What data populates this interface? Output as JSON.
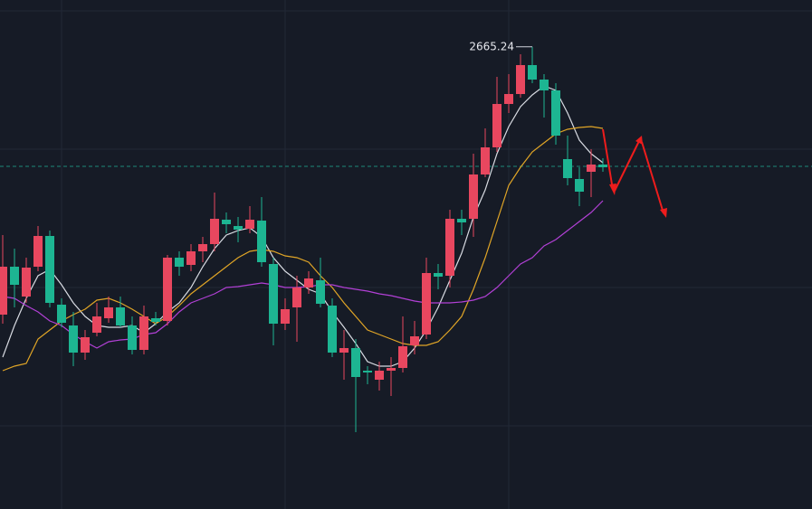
{
  "chart_data": {
    "type": "candlestick",
    "high_label": "2665.24",
    "up_color": "#e8475f",
    "down_color": "#1db592",
    "ylim": [
      2154,
      2717
    ],
    "open": [
      2369,
      2422,
      2389,
      2422,
      2456,
      2380,
      2357,
      2327,
      2349,
      2365,
      2377,
      2357,
      2330,
      2365,
      2362,
      2432,
      2424,
      2439,
      2447,
      2474,
      2467,
      2464,
      2473,
      2425,
      2359,
      2377,
      2399,
      2407,
      2379,
      2327,
      2332,
      2307,
      2297,
      2307,
      2310,
      2335,
      2347,
      2415,
      2412,
      2475,
      2475,
      2524,
      2554,
      2602,
      2613,
      2645,
      2629,
      2617,
      2541,
      2519,
      2527,
      2535
    ],
    "high": [
      2457,
      2442,
      2432,
      2467,
      2462,
      2387,
      2372,
      2352,
      2382,
      2389,
      2389,
      2367,
      2379,
      2372,
      2435,
      2439,
      2447,
      2455,
      2504,
      2482,
      2477,
      2489,
      2499,
      2432,
      2387,
      2412,
      2417,
      2432,
      2387,
      2352,
      2342,
      2312,
      2317,
      2322,
      2367,
      2362,
      2432,
      2425,
      2485,
      2485,
      2547,
      2575,
      2632,
      2635,
      2657,
      2665.24,
      2635,
      2625,
      2567,
      2532,
      2552,
      2542
    ],
    "low": [
      2359,
      2377,
      2382,
      2417,
      2377,
      2355,
      2312,
      2319,
      2345,
      2360,
      2355,
      2325,
      2325,
      2357,
      2357,
      2412,
      2417,
      2427,
      2439,
      2459,
      2449,
      2459,
      2422,
      2335,
      2352,
      2339,
      2392,
      2377,
      2322,
      2297,
      2239,
      2292,
      2285,
      2279,
      2305,
      2325,
      2342,
      2397,
      2399,
      2457,
      2455,
      2521,
      2549,
      2592,
      2609,
      2625,
      2587,
      2557,
      2512,
      2489,
      2499,
      2527
    ],
    "close": [
      2422,
      2402,
      2421,
      2456,
      2382,
      2360,
      2327,
      2344,
      2367,
      2377,
      2357,
      2330,
      2367,
      2361,
      2432,
      2422,
      2439,
      2447,
      2475,
      2469,
      2463,
      2474,
      2427,
      2359,
      2375,
      2399,
      2409,
      2381,
      2327,
      2332,
      2300,
      2305,
      2307,
      2310,
      2334,
      2345,
      2415,
      2411,
      2475,
      2471,
      2524,
      2554,
      2602,
      2613,
      2645,
      2629,
      2617,
      2567,
      2520,
      2505,
      2535,
      2532
    ],
    "series": [
      {
        "color": "#d8dbe2",
        "values": [
          2322,
          2357,
          2387,
          2412,
          2419,
          2402,
          2382,
          2367,
          2357,
          2355,
          2355,
          2357,
          2349,
          2359,
          2372,
          2382,
          2399,
          2422,
          2442,
          2457,
          2462,
          2465,
          2455,
          2432,
          2417,
          2407,
          2397,
          2392,
          2372,
          2355,
          2337,
          2317,
          2312,
          2312,
          2317,
          2332,
          2352,
          2377,
          2407,
          2437,
          2477,
          2507,
          2547,
          2577,
          2599,
          2612,
          2622,
          2617,
          2592,
          2562,
          2547,
          2537
        ]
      },
      {
        "color": "#e0a526",
        "values": [
          2307,
          2312,
          2315,
          2342,
          2352,
          2362,
          2369,
          2375,
          2385,
          2387,
          2382,
          2375,
          2367,
          2359,
          2367,
          2379,
          2392,
          2402,
          2412,
          2422,
          2432,
          2439,
          2441,
          2439,
          2434,
          2432,
          2427,
          2412,
          2399,
          2382,
          2367,
          2352,
          2347,
          2342,
          2337,
          2335,
          2335,
          2339,
          2352,
          2367,
          2397,
          2432,
          2472,
          2512,
          2532,
          2549,
          2559,
          2569,
          2574,
          2576,
          2577,
          2575
        ]
      },
      {
        "color": "#b240d6",
        "values": [
          2389,
          2387,
          2379,
          2372,
          2362,
          2357,
          2347,
          2339,
          2332,
          2339,
          2341,
          2342,
          2347,
          2349,
          2359,
          2372,
          2382,
          2387,
          2392,
          2399,
          2400,
          2402,
          2404,
          2402,
          2399,
          2399,
          2400,
          2402,
          2402,
          2399,
          2397,
          2395,
          2392,
          2390,
          2387,
          2384,
          2382,
          2382,
          2382,
          2383,
          2385,
          2389,
          2399,
          2412,
          2425,
          2432,
          2445,
          2452,
          2462,
          2472,
          2482,
          2495
        ]
      }
    ]
  }
}
